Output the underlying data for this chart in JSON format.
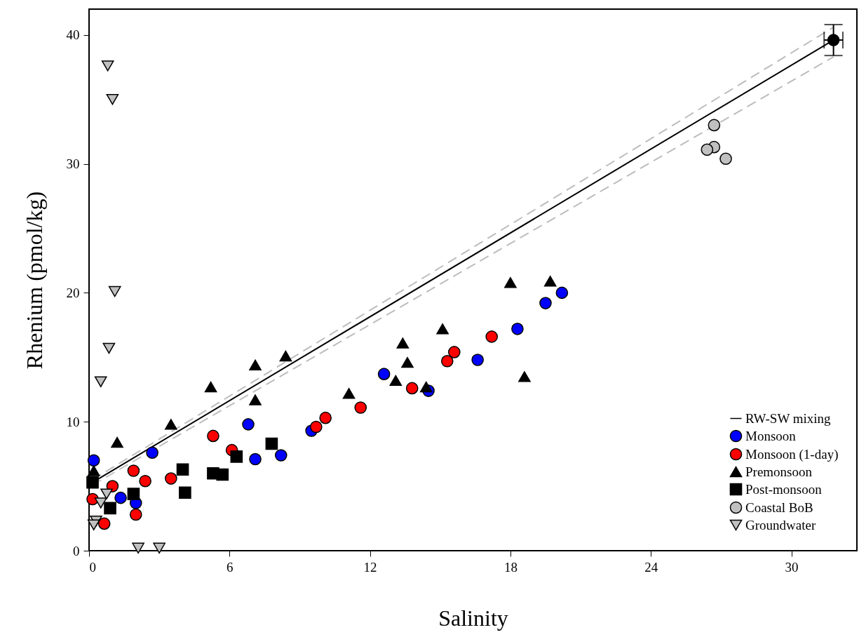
{
  "chart_data": {
    "type": "scatter",
    "xlabel": "Salinity",
    "ylabel": "Rhenium (pmol/kg)",
    "xlim": [
      0,
      32.8
    ],
    "ylim": [
      0,
      42
    ],
    "xticks": [
      0,
      6,
      12,
      18,
      24,
      30
    ],
    "yticks": [
      0,
      10,
      20,
      30,
      40
    ],
    "grid": false,
    "legend": "bottom right",
    "series": [
      {
        "type": "line",
        "name": "RW-SW mixing",
        "color": "#000000",
        "line_style": "solid",
        "x": [
          0.15,
          31.8
        ],
        "values": [
          5.3,
          39.6
        ]
      },
      {
        "type": "line",
        "color": "#bdbdbd",
        "line_style": "dashed",
        "x": [
          0.15,
          31.8
        ],
        "values": [
          5.5,
          40.6
        ]
      },
      {
        "type": "line",
        "color": "#bdbdbd",
        "line_style": "dashed",
        "x": [
          0.15,
          31.8
        ],
        "values": [
          5.1,
          38.3
        ]
      },
      {
        "type": "scatter",
        "name": "Monsoon",
        "color": "#0000ff",
        "marker": "circle",
        "x": [
          0.2,
          2.7,
          1.35,
          2.0,
          6.8,
          7.1,
          8.2,
          9.5,
          12.6,
          14.5,
          16.6,
          18.3,
          19.5,
          20.2
        ],
        "values": [
          7.0,
          7.6,
          4.1,
          3.7,
          9.8,
          7.1,
          7.4,
          9.3,
          13.7,
          12.4,
          14.8,
          17.2,
          19.2,
          20.0
        ]
      },
      {
        "type": "scatter",
        "name": "Monsoon (1-day)",
        "color": "#ff0000",
        "marker": "circle",
        "x": [
          1.0,
          1.9,
          2.4,
          2.0,
          0.65,
          0.15,
          3.5,
          5.3,
          6.1,
          9.7,
          10.1,
          11.6,
          13.8,
          15.3,
          15.6,
          17.2
        ],
        "values": [
          5.0,
          6.2,
          5.4,
          2.8,
          2.1,
          4.0,
          5.6,
          8.9,
          7.8,
          9.6,
          10.3,
          11.1,
          12.6,
          14.7,
          15.4,
          16.6
        ]
      },
      {
        "type": "scatter",
        "name": "Premonsoon",
        "color": "#000000",
        "marker": "triangle",
        "x": [
          0.2,
          1.2,
          3.5,
          5.2,
          7.1,
          7.1,
          8.4,
          11.1,
          13.1,
          13.4,
          13.6,
          14.4,
          15.1,
          18.0,
          19.7,
          18.6
        ],
        "values": [
          6.2,
          8.4,
          9.8,
          12.7,
          14.4,
          11.7,
          15.1,
          12.2,
          13.2,
          16.1,
          14.6,
          12.7,
          17.2,
          20.8,
          20.9,
          13.5
        ]
      },
      {
        "type": "scatter",
        "name": "Post-monsoon",
        "color": "#000000",
        "marker": "square",
        "x": [
          0.15,
          0.9,
          1.9,
          4.0,
          4.1,
          5.3,
          5.7,
          6.3,
          7.8
        ],
        "values": [
          5.3,
          3.3,
          4.4,
          6.3,
          4.5,
          6.0,
          5.9,
          7.3,
          8.3
        ]
      },
      {
        "type": "scatter",
        "name": "Coastal BoB",
        "color": "#c0c0c0",
        "marker": "circle",
        "x": [
          26.7,
          26.7,
          26.4,
          27.2
        ],
        "values": [
          33.0,
          31.3,
          31.1,
          30.4
        ]
      },
      {
        "type": "scatter",
        "name": "Groundwater",
        "color": "#c0c0c0",
        "marker": "triangle-down",
        "x": [
          0.8,
          1.0,
          1.1,
          0.85,
          0.5,
          0.3,
          0.2,
          0.5,
          0.75,
          2.1,
          3.0
        ],
        "values": [
          37.6,
          35.0,
          20.1,
          15.7,
          13.1,
          2.3,
          2.0,
          3.7,
          4.4,
          0.2,
          0.2
        ]
      },
      {
        "type": "scatter",
        "color": "#000000",
        "marker": "circle",
        "x": [
          31.8
        ],
        "values": [
          39.6
        ],
        "errors": [
          1.2
        ],
        "xerrors": [
          0.4
        ]
      }
    ]
  }
}
